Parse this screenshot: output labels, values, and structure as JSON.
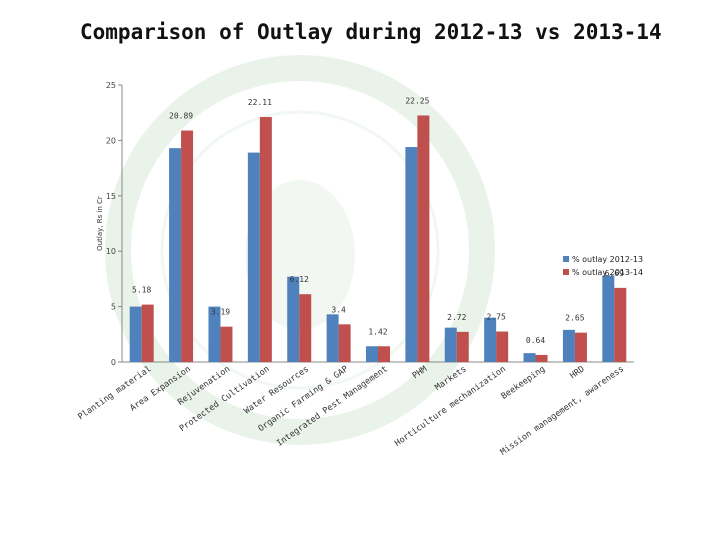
{
  "page": {
    "title": "Comparison of Outlay during 2012-13 vs 2013-14"
  },
  "colors": {
    "series_2012": "#4F81BD",
    "series_2013": "#C0504D",
    "watermark": "#d8ead8"
  },
  "chart_data": {
    "type": "bar",
    "title": "Comparison of Outlay during 2012-13 vs 2013-14",
    "ylabel": "Outlay, Rs in Cr",
    "xlabel": "",
    "ylim": [
      0,
      25
    ],
    "yticks": [
      0,
      5,
      10,
      15,
      20,
      25
    ],
    "grid": false,
    "legend_position": "right",
    "categories": [
      "Planting material",
      "Area Expansion",
      "Rejuvenation",
      "Protected Cultivation",
      "Water Resources",
      "Organic Farming & GAP",
      "Integrated Pest Management",
      "PHM",
      "Markets",
      "Horticulture mechanization",
      "Beekeeping",
      "HRD",
      "Mission management, awareness"
    ],
    "series": [
      {
        "name": "% outlay 2012-13",
        "color": "#4F81BD",
        "values": [
          5.0,
          19.3,
          5.0,
          18.9,
          7.7,
          4.3,
          1.42,
          19.4,
          3.1,
          4.0,
          0.8,
          2.9,
          7.8
        ]
      },
      {
        "name": "% outlay 2013-14",
        "color": "#C0504D",
        "values": [
          5.18,
          20.89,
          3.19,
          22.11,
          6.12,
          3.4,
          1.42,
          22.25,
          2.72,
          2.75,
          0.64,
          2.65,
          6.69
        ]
      }
    ],
    "data_labels": [
      "5.18",
      "20.89",
      "3.19",
      "22.11",
      "6.12",
      "3.4",
      "1.42",
      "22.25",
      "2.72",
      "2.75",
      "0.64",
      "2.65",
      "6.69"
    ]
  }
}
